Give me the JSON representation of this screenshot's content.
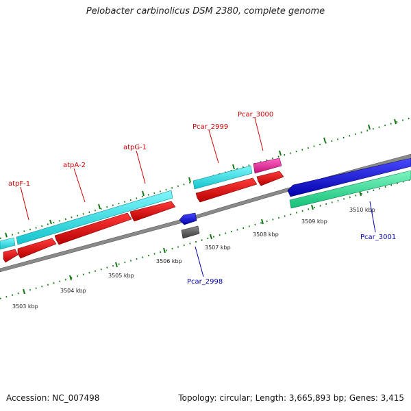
{
  "header": {
    "title": "Pelobacter carbinolicus DSM 2380, complete genome"
  },
  "footer": {
    "accession": "Accession: NC_007498",
    "summary": "Topology: circular; Length: 3,665,893 bp; Genes: 3,415"
  },
  "scale_labels": [
    "3503 kbp",
    "3504 kbp",
    "3505 kbp",
    "3506 kbp",
    "3507 kbp",
    "3508 kbp",
    "3509 kbp",
    "3510 kbp"
  ],
  "gene_labels": {
    "atpF_1": "atpF-1",
    "atpA_2": "atpA-2",
    "atpG_1": "atpG-1",
    "pcar_2999": "Pcar_2999",
    "pcar_3000": "Pcar_3000",
    "pcar_2998": "Pcar_2998",
    "pcar_3001": "Pcar_3001"
  },
  "colors": {
    "backbone": "#8a8a8a",
    "cds_red": "#ee0000",
    "cds_cyan": "#22e6ee",
    "cds_blue": "#1010dd",
    "cds_magenta": "#ee1e9e",
    "cds_green": "#22ee99",
    "cds_gray": "#666666",
    "tick": "#117711",
    "label_red": "#cc0000",
    "label_blue": "#0000aa"
  }
}
